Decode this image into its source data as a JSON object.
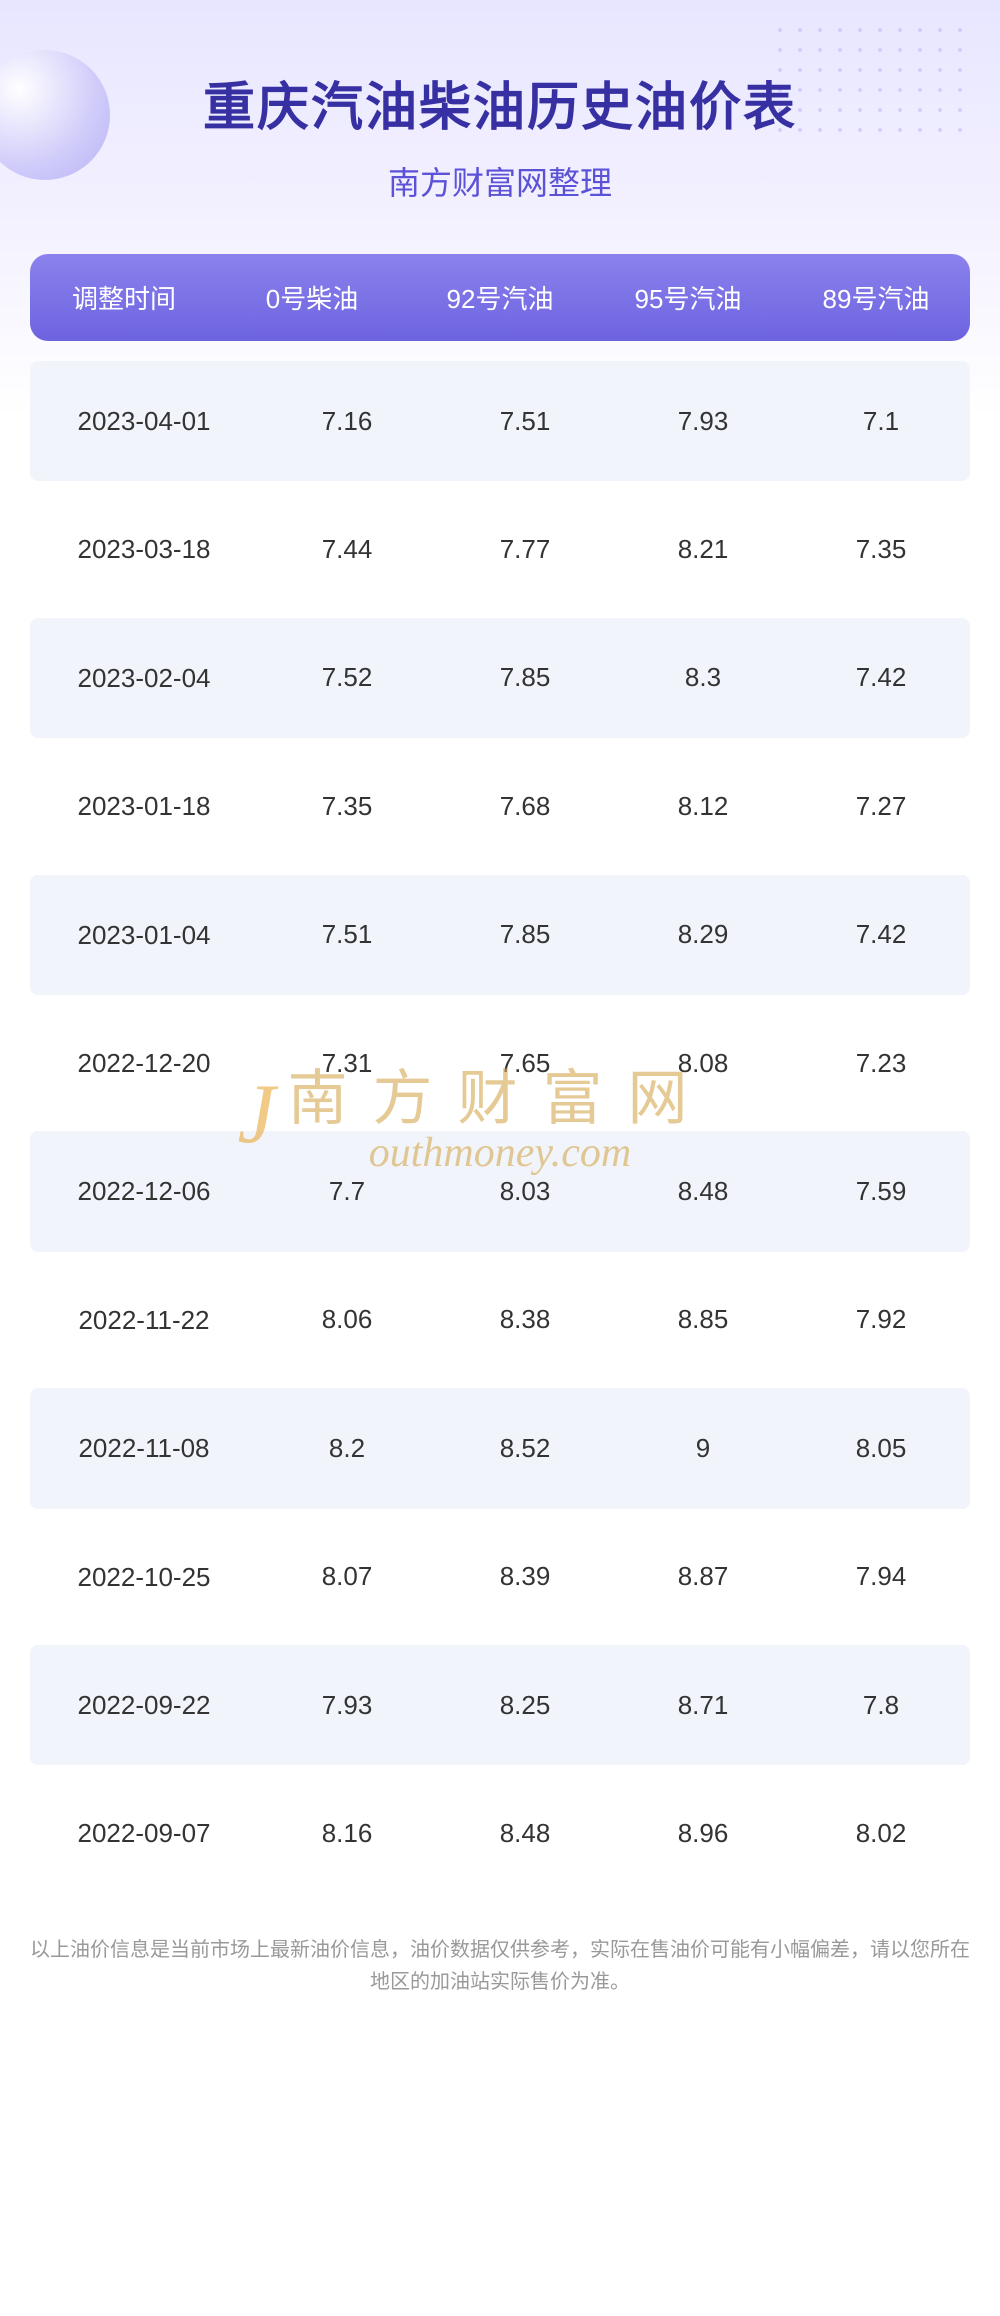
{
  "header": {
    "title": "重庆汽油柴油历史油价表",
    "subtitle": "南方财富网整理"
  },
  "table": {
    "columns": [
      "调整时间",
      "0号柴油",
      "92号汽油",
      "95号汽油",
      "89号汽油"
    ],
    "rows": [
      [
        "2023-04-01",
        "7.16",
        "7.51",
        "7.93",
        "7.1"
      ],
      [
        "2023-03-18",
        "7.44",
        "7.77",
        "8.21",
        "7.35"
      ],
      [
        "2023-02-04",
        "7.52",
        "7.85",
        "8.3",
        "7.42"
      ],
      [
        "2023-01-18",
        "7.35",
        "7.68",
        "8.12",
        "7.27"
      ],
      [
        "2023-01-04",
        "7.51",
        "7.85",
        "8.29",
        "7.42"
      ],
      [
        "2022-12-20",
        "7.31",
        "7.65",
        "8.08",
        "7.23"
      ],
      [
        "2022-12-06",
        "7.7",
        "8.03",
        "8.48",
        "7.59"
      ],
      [
        "2022-11-22",
        "8.06",
        "8.38",
        "8.85",
        "7.92"
      ],
      [
        "2022-11-08",
        "8.2",
        "8.52",
        "9",
        "8.05"
      ],
      [
        "2022-10-25",
        "8.07",
        "8.39",
        "8.87",
        "7.94"
      ],
      [
        "2022-09-22",
        "7.93",
        "8.25",
        "8.71",
        "7.8"
      ],
      [
        "2022-09-07",
        "8.16",
        "8.48",
        "8.96",
        "8.02"
      ]
    ]
  },
  "watermark": {
    "cn": "南方财富网",
    "en": "outhmoney.com",
    "j": "J"
  },
  "footer": {
    "note": "以上油价信息是当前市场上最新油价信息，油价数据仅供参考，实际在售油价可能有小幅偏差，请以您所在地区的加油站实际售价为准。"
  },
  "colors": {
    "title_color": "#3730a3",
    "subtitle_color": "#5b52d8",
    "header_gradient_start": "#8b82ed",
    "header_gradient_end": "#6d63e0",
    "row_odd_bg": "#f1f4fa",
    "row_even_bg": "#ffffff",
    "text_color": "#333333",
    "watermark_color": "#d4a84f",
    "footer_color": "#999999",
    "bg_gradient_start": "#e8e6ff"
  }
}
